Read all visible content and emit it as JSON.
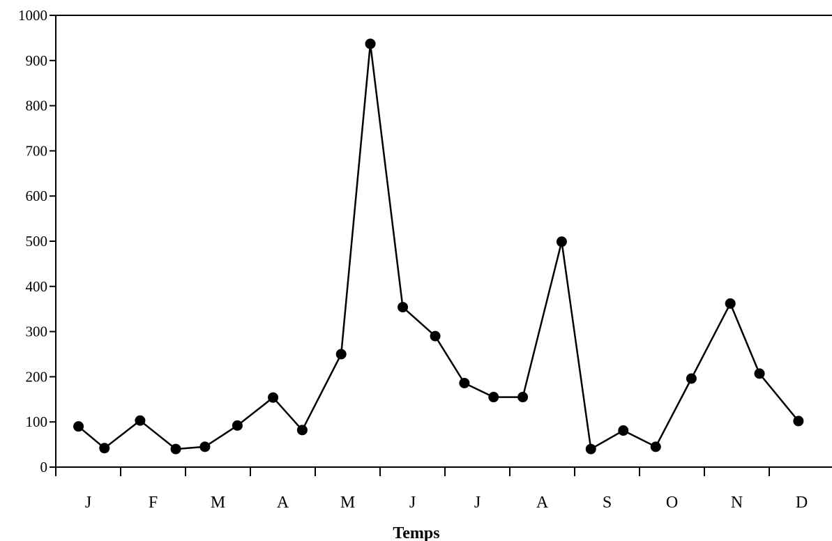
{
  "chart_data": {
    "type": "line",
    "title": "",
    "xlabel": "Temps",
    "ylabel": "",
    "ylim": [
      0,
      1000
    ],
    "yticks": [
      "0",
      "100",
      "200",
      "300",
      "400",
      "500",
      "600",
      "700",
      "800",
      "900",
      "1000"
    ],
    "months": [
      "J",
      "F",
      "M",
      "A",
      "M",
      "J",
      "J",
      "A",
      "S",
      "O",
      "N",
      "D"
    ],
    "grid": false,
    "legend": "none",
    "series": [
      {
        "color": "#000000",
        "x": [
          0.35,
          0.75,
          1.3,
          1.85,
          2.3,
          2.8,
          3.35,
          3.8,
          4.4,
          4.85,
          5.35,
          5.85,
          6.3,
          6.75,
          7.2,
          7.8,
          8.25,
          8.75,
          9.25,
          9.8,
          10.4,
          10.85,
          11.45
        ],
        "values": [
          90,
          42,
          103,
          40,
          45,
          92,
          154,
          82,
          250,
          937,
          354,
          290,
          186,
          155,
          155,
          499,
          40,
          81,
          45,
          196,
          362,
          207,
          102
        ]
      }
    ]
  }
}
